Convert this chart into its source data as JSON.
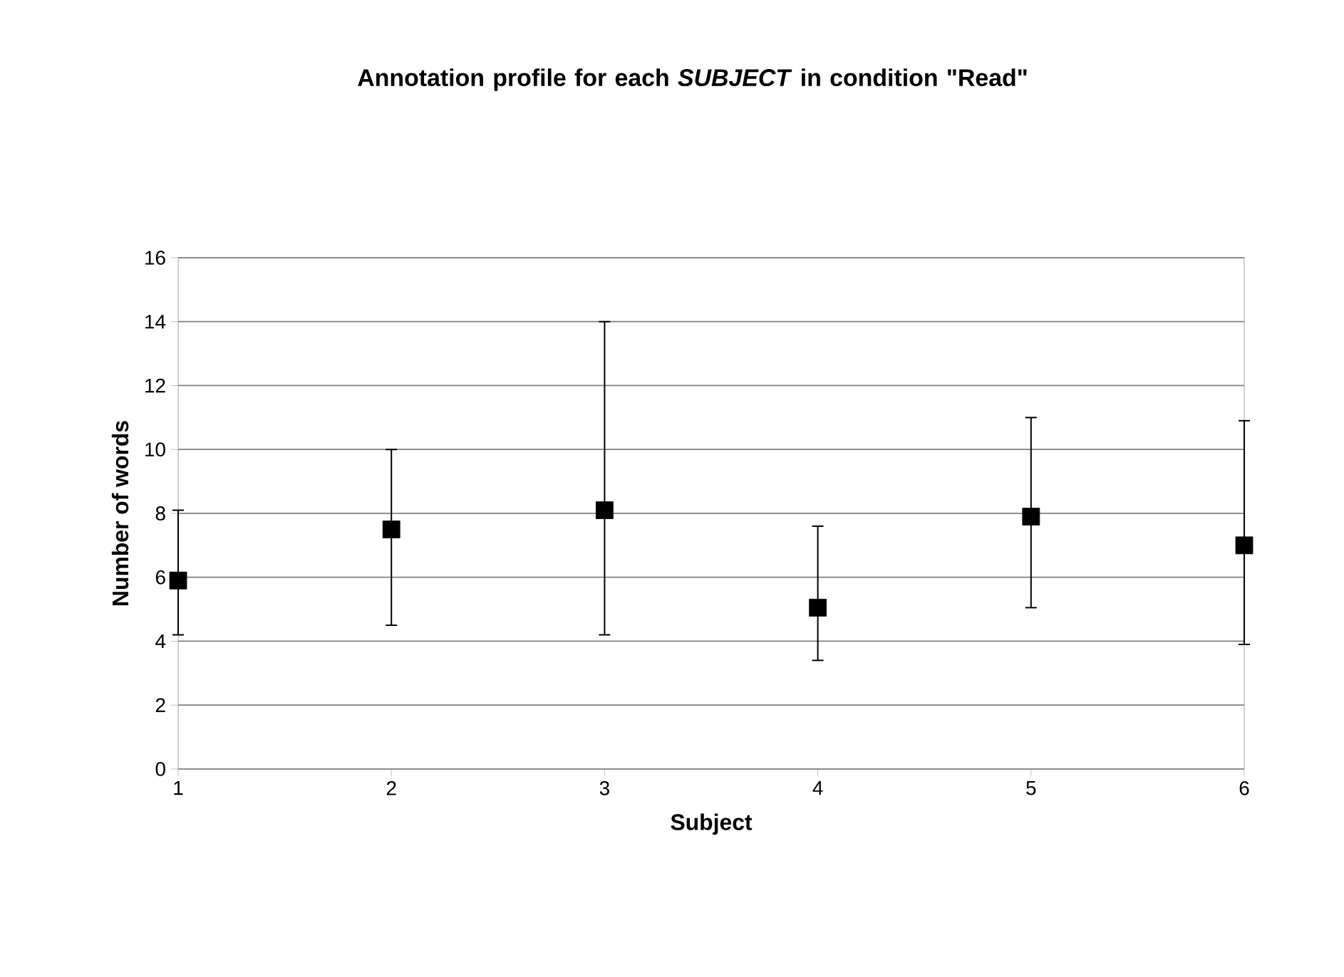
{
  "chart_data": {
    "type": "scatter",
    "title": "Annotation profile for each *SUBJECT* in condition \"Read\"",
    "xlabel": "Subject",
    "ylabel": "Number of words",
    "categories": [
      "1",
      "2",
      "3",
      "4",
      "5",
      "6"
    ],
    "series": [
      {
        "color": "#000000",
        "values": [
          5.9,
          7.5,
          8.1,
          5.05,
          7.9,
          7.0
        ],
        "errors": [
          [
            4.2,
            8.1
          ],
          [
            4.5,
            10.0
          ],
          [
            4.2,
            14.0
          ],
          [
            3.4,
            7.6
          ],
          [
            5.05,
            11.0
          ],
          [
            3.9,
            10.9
          ]
        ]
      }
    ],
    "ylim": [
      0,
      16
    ],
    "yticks": [
      0,
      2,
      4,
      6,
      8,
      10,
      12,
      14,
      16
    ],
    "grid": "y",
    "marker": "square"
  }
}
